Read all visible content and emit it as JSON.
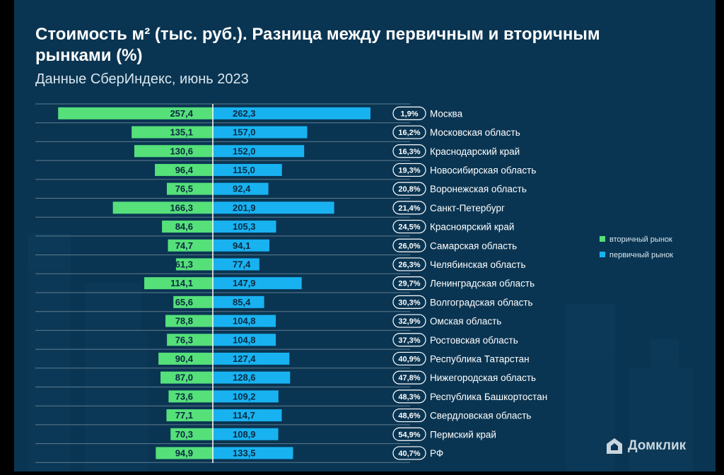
{
  "title": "Стоимость м² (тыс. руб.). Разница между первичным и вторичным рынками (%)",
  "subtitle": "Данные СберИндекс, июнь 2023",
  "logo": {
    "text": "Домклик",
    "icon": "house-icon"
  },
  "colors": {
    "background": "#0a3552",
    "secondary": "#55e07a",
    "primary": "#19b2f0"
  },
  "chart_data": {
    "type": "bar",
    "orientation": "horizontal-diverging",
    "categories": [
      "Москва",
      "Московская область",
      "Краснодарский край",
      "Новосибирская область",
      "Воронежская область",
      "Санкт-Петербург",
      "Красноярский край",
      "Самарская область",
      "Челябинская область",
      "Ленинградская область",
      "Волгоградская область",
      "Омская область",
      "Ростовская область",
      "Республика Татарстан",
      "Нижегородская область",
      "Республика Башкортостан",
      "Свердловская область",
      "Пермский край",
      "РФ"
    ],
    "series": [
      {
        "name": "вторичный рынок",
        "color": "#55e07a",
        "values": [
          257.4,
          135.1,
          130.6,
          96.4,
          76.5,
          166.3,
          84.6,
          74.7,
          61.3,
          114.1,
          65.6,
          78.8,
          76.3,
          90.4,
          87.0,
          73.6,
          77.1,
          70.3,
          94.9
        ],
        "labels": [
          "257,4",
          "135,1",
          "130,6",
          "96,4",
          "76,5",
          "166,3",
          "84,6",
          "74,7",
          "61,3",
          "114,1",
          "65,6",
          "78,8",
          "76,3",
          "90,4",
          "87,0",
          "73,6",
          "77,1",
          "70,3",
          "94,9"
        ]
      },
      {
        "name": "первичный рынок",
        "color": "#19b2f0",
        "values": [
          262.3,
          157.0,
          152.0,
          115.0,
          92.4,
          201.9,
          105.3,
          94.1,
          77.4,
          147.9,
          85.4,
          104.8,
          104.8,
          127.4,
          128.6,
          109.2,
          114.7,
          108.9,
          133.5
        ],
        "labels": [
          "262,3",
          "157,0",
          "152,0",
          "115,0",
          "92,4",
          "201,9",
          "105,3",
          "94,1",
          "77,4",
          "147,9",
          "85,4",
          "104,8",
          "104,8",
          "127,4",
          "128,6",
          "109,2",
          "114,7",
          "108,9",
          "133,5"
        ]
      }
    ],
    "difference_labels": [
      "1,9%",
      "16,2%",
      "16,3%",
      "19,3%",
      "20,8%",
      "21,4%",
      "24,5%",
      "26,0%",
      "26,3%",
      "29,7%",
      "30,3%",
      "32,9%",
      "37,3%",
      "40,9%",
      "47,8%",
      "48,3%",
      "48,6%",
      "54,9%",
      "40,7%"
    ],
    "legend": {
      "placement": "right",
      "items": [
        "вторичный рынок",
        "первичный рынок"
      ]
    }
  }
}
